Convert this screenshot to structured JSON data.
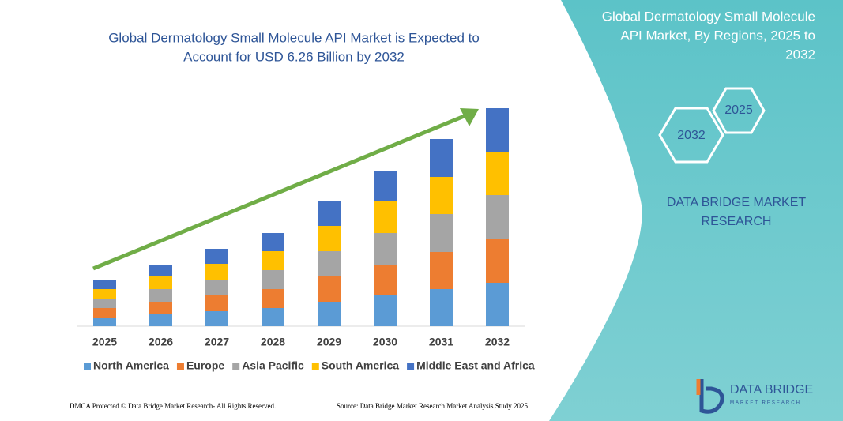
{
  "chart_data": {
    "type": "stacked-bar",
    "title": [
      "Global Dermatology Small Molecule API Market is Expected to",
      "Account for USD 6.26 Billion by 2032"
    ],
    "categories": [
      "2025",
      "2026",
      "2027",
      "2028",
      "2029",
      "2030",
      "2031",
      "2032"
    ],
    "series": [
      {
        "name": "North America",
        "color": "#5b9bd5",
        "values": [
          11,
          15,
          19,
          23,
          31,
          39,
          47,
          55
        ]
      },
      {
        "name": "Europe",
        "color": "#ed7d31",
        "values": [
          12,
          16,
          20,
          24,
          32,
          39,
          47,
          55
        ]
      },
      {
        "name": "Asia Pacific",
        "color": "#a5a5a5",
        "values": [
          12,
          16,
          20,
          24,
          32,
          40,
          48,
          56
        ]
      },
      {
        "name": "South America",
        "color": "#ffc000",
        "values": [
          12,
          16,
          20,
          24,
          32,
          40,
          47,
          55
        ]
      },
      {
        "name": "Middle East and Africa",
        "color": "#4472c4",
        "values": [
          12,
          15,
          19,
          23,
          31,
          39,
          48,
          55
        ]
      }
    ],
    "ylim": [
      0,
      276
    ]
  },
  "panel": {
    "title": [
      "Global Dermatology Small Molecule",
      "API Market, By Regions, 2025 to",
      "2032"
    ],
    "hex_start": "2025",
    "hex_end": "2032",
    "brand": [
      "DATA BRIDGE MARKET",
      "RESEARCH"
    ]
  },
  "logo": {
    "name": "DATA BRIDGE",
    "tagline": "MARKET RESEARCH"
  },
  "footer": {
    "left": "DMCA Protected © Data Bridge Market Research- All Rights Reserved.",
    "right": "Source: Data Bridge Market Research Market Analysis Study 2025"
  }
}
